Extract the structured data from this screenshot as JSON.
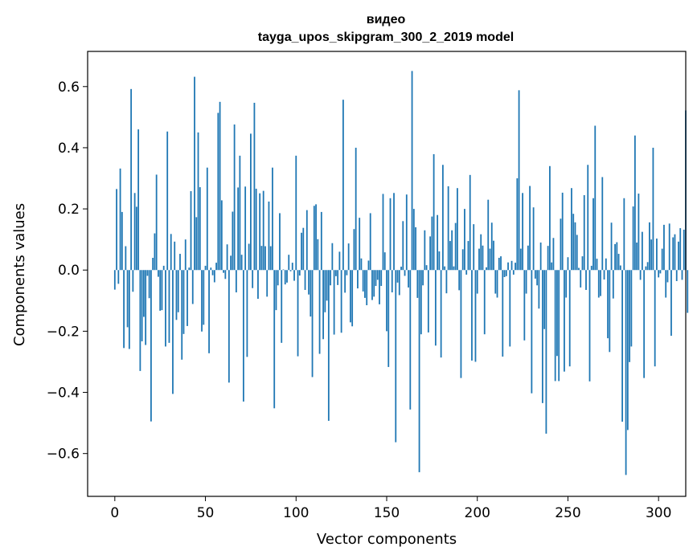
{
  "chart_data": {
    "type": "bar",
    "title": "видео",
    "subtitle": "tayga_upos_skipgram_300_2_2019 model",
    "xlabel": "Vector components",
    "ylabel": "Components values",
    "xlim": [
      -15,
      315
    ],
    "ylim": [
      -0.74,
      0.715
    ],
    "xticks": [
      0,
      50,
      100,
      150,
      200,
      250,
      300
    ],
    "xtick_labels": [
      "0",
      "50",
      "100",
      "150",
      "200",
      "250",
      "300"
    ],
    "yticks": [
      -0.6,
      -0.4,
      -0.2,
      0.0,
      0.2,
      0.4,
      0.6
    ],
    "ytick_labels": [
      "−0.6",
      "−0.4",
      "−0.2",
      "0.0",
      "0.2",
      "0.4",
      "0.6"
    ],
    "color": "#1f77b4",
    "values": [
      -0.064,
      0.265,
      -0.045,
      0.332,
      0.19,
      -0.255,
      0.078,
      -0.187,
      -0.258,
      0.592,
      -0.071,
      0.252,
      0.207,
      0.46,
      -0.33,
      -0.233,
      -0.153,
      -0.245,
      -0.019,
      -0.092,
      -0.495,
      0.04,
      0.12,
      0.312,
      -0.022,
      -0.133,
      -0.131,
      0.014,
      -0.25,
      0.453,
      -0.238,
      0.118,
      -0.405,
      0.093,
      -0.163,
      -0.138,
      0.053,
      -0.293,
      -0.209,
      0.1,
      -0.183,
      0.008,
      0.258,
      -0.111,
      0.632,
      0.173,
      0.45,
      0.271,
      -0.201,
      -0.179,
      0.014,
      0.335,
      -0.272,
      0.008,
      -0.017,
      -0.04,
      0.024,
      0.514,
      0.55,
      0.228,
      -0.009,
      -0.029,
      0.084,
      -0.368,
      0.047,
      0.191,
      0.476,
      -0.073,
      0.27,
      0.374,
      0.05,
      -0.43,
      0.273,
      -0.284,
      0.086,
      0.446,
      -0.059,
      0.547,
      0.266,
      -0.094,
      0.251,
      0.079,
      0.259,
      0.078,
      -0.087,
      0.224,
      0.078,
      0.335,
      -0.452,
      -0.131,
      -0.05,
      0.186,
      -0.238,
      0.002,
      -0.047,
      -0.041,
      0.05,
      -0.004,
      0.024,
      -0.035,
      0.374,
      -0.282,
      -0.018,
      0.122,
      0.138,
      -0.065,
      0.196,
      -0.08,
      -0.152,
      -0.35,
      0.21,
      0.215,
      0.101,
      -0.274,
      0.19,
      -0.226,
      -0.138,
      -0.1,
      -0.493,
      -0.05,
      0.088,
      -0.211,
      -0.02,
      -0.049,
      0.06,
      -0.205,
      0.557,
      -0.074,
      -0.017,
      0.087,
      -0.171,
      -0.184,
      0.134,
      0.4,
      -0.06,
      0.171,
      0.038,
      -0.07,
      -0.091,
      -0.115,
      0.031,
      0.186,
      -0.098,
      -0.087,
      -0.052,
      -0.032,
      -0.112,
      -0.052,
      0.249,
      0.058,
      -0.2,
      -0.317,
      0.235,
      -0.073,
      0.252,
      -0.563,
      -0.041,
      -0.082,
      0.011,
      0.16,
      -0.019,
      0.247,
      -0.057,
      -0.456,
      0.651,
      0.2,
      0.14,
      -0.091,
      -0.661,
      -0.21,
      -0.05,
      0.13,
      0.016,
      -0.204,
      0.11,
      0.175,
      0.379,
      -0.247,
      0.18,
      0.061,
      -0.286,
      0.344,
      0.012,
      -0.076,
      0.274,
      0.095,
      0.13,
      0.012,
      0.154,
      0.268,
      -0.066,
      -0.353,
      0.068,
      0.2,
      -0.015,
      0.095,
      0.311,
      -0.296,
      0.15,
      -0.3,
      -0.077,
      0.07,
      0.117,
      0.08,
      -0.21,
      0.009,
      0.23,
      0.07,
      0.155,
      0.096,
      -0.077,
      -0.09,
      0.04,
      0.045,
      -0.283,
      -0.023,
      -0.02,
      0.025,
      -0.25,
      0.03,
      -0.015,
      0.024,
      0.3,
      0.588,
      0.07,
      0.252,
      -0.23,
      -0.077,
      0.08,
      0.275,
      -0.403,
      0.205,
      -0.028,
      -0.05,
      -0.126,
      0.09,
      -0.435,
      -0.193,
      -0.535,
      0.079,
      0.34,
      0.025,
      0.105,
      -0.363,
      -0.281,
      -0.363,
      0.168,
      0.253,
      -0.332,
      -0.09,
      0.042,
      -0.315,
      0.268,
      0.184,
      0.156,
      0.115,
      0.007,
      -0.057,
      0.045,
      0.245,
      -0.065,
      0.344,
      -0.364,
      0.014,
      0.235,
      0.472,
      0.037,
      -0.09,
      -0.085,
      0.304,
      -0.031,
      0.038,
      -0.223,
      -0.268,
      0.155,
      -0.093,
      0.085,
      0.091,
      0.053,
      0.015,
      -0.496,
      0.235,
      -0.67,
      -0.523,
      -0.301,
      -0.25,
      0.208,
      0.44,
      0.09,
      0.25,
      -0.032,
      0.125,
      -0.353,
      0.012,
      0.026,
      0.156,
      0.1,
      0.4,
      -0.315,
      0.103,
      -0.024,
      -0.011,
      0.07,
      0.148,
      -0.09,
      -0.04,
      0.152,
      -0.215,
      0.107,
      0.117,
      -0.036,
      0.093,
      0.137,
      -0.032,
      0.132,
      0.522,
      -0.14
    ]
  }
}
